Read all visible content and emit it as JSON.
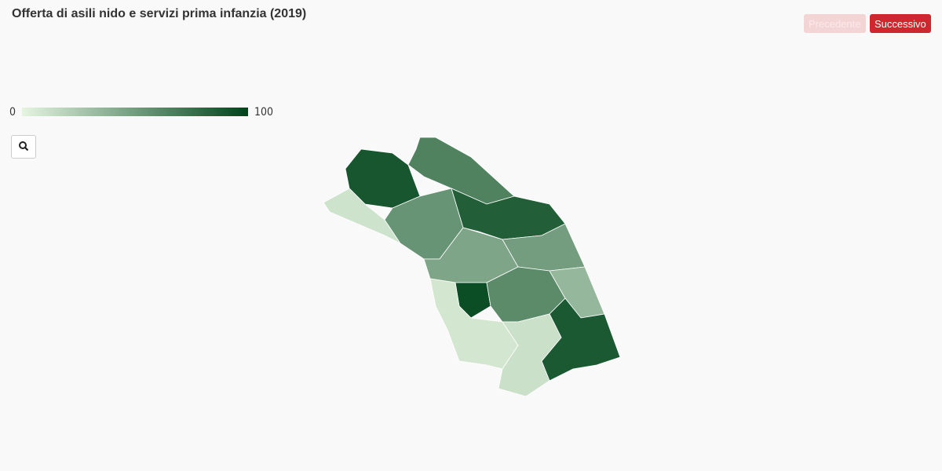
{
  "header": {
    "title": "Offerta di asili nido e servizi prima infanzia (2019)"
  },
  "buttons": {
    "previous": "Precedente",
    "next": "Successivo"
  },
  "legend": {
    "min": 0,
    "max": 100,
    "color_low": "#e5f5e0",
    "color_high": "#00441b"
  },
  "map": {
    "areas": [
      {
        "value": 90
      },
      {
        "value": 10
      },
      {
        "value": 65
      },
      {
        "value": 55
      },
      {
        "value": 85
      },
      {
        "value": 45
      },
      {
        "value": 50
      },
      {
        "value": 95
      },
      {
        "value": 8
      },
      {
        "value": 60
      },
      {
        "value": 35
      },
      {
        "value": 88
      },
      {
        "value": 12
      }
    ]
  }
}
